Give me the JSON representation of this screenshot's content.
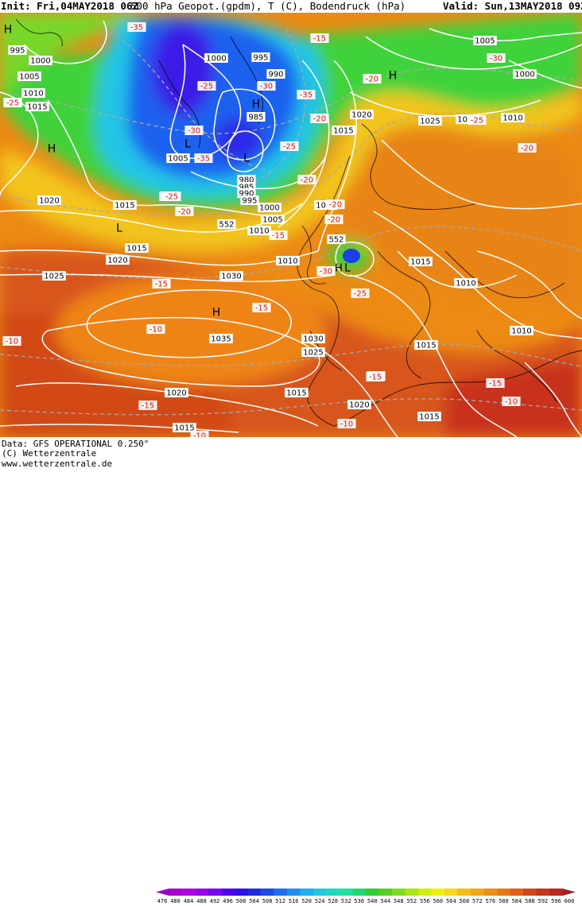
{
  "header": {
    "init": "Init: Fri,04MAY2018 06Z",
    "title": "500 hPa Geopot.(gpdm), T (C), Bodendruck (hPa)",
    "valid": "Valid: Sun,13MAY2018 09Z"
  },
  "footer": {
    "data_line": "Data: GFS OPERATIONAL 0.250°",
    "copyright": "(C) Wetterzentrale",
    "website": "www.wetterzentrale.de"
  },
  "legend": {
    "ticks": [
      "476",
      "480",
      "484",
      "488",
      "492",
      "496",
      "500",
      "504",
      "508",
      "512",
      "516",
      "520",
      "524",
      "528",
      "532",
      "536",
      "540",
      "544",
      "548",
      "552",
      "556",
      "560",
      "564",
      "568",
      "572",
      "576",
      "580",
      "584",
      "588",
      "592",
      "596",
      "600"
    ],
    "colors": [
      "#9b00c8",
      "#a800d0",
      "#b000e0",
      "#9a00e8",
      "#7a00f0",
      "#5000f0",
      "#2f10e8",
      "#1a30e0",
      "#1a4ce8",
      "#1c70f0",
      "#2090f0",
      "#20b0f0",
      "#20c8e0",
      "#20d8c0",
      "#20e0a0",
      "#22d870",
      "#33cc33",
      "#55d022",
      "#7cdc1c",
      "#a8e612",
      "#d0ee10",
      "#eef010",
      "#f6d818",
      "#f4be18",
      "#f0a818",
      "#ec9018",
      "#e67818",
      "#e06018",
      "#d44818",
      "#c83418",
      "#b82820",
      "#a01e24"
    ]
  },
  "map": {
    "colors": {
      "ocean_orange": "#ec8a14",
      "deep_south": "#d8501a",
      "green_band": "#3fd23a",
      "light_green": "#7fdc2a",
      "cyan": "#22c8e8",
      "blue": "#1a60ee",
      "dark_blue": "#3018e6",
      "yellow": "#f4d21a",
      "isobar": "#ffffff",
      "temp_line": "#b0b0b0"
    },
    "pressure_labels": [
      "995",
      "1000",
      "1005",
      "1010",
      "1015",
      "1020",
      "1000",
      "995",
      "990",
      "985",
      "1005",
      "980",
      "985",
      "990",
      "995",
      "1000",
      "1005",
      "1010",
      "1015",
      "1020",
      "1025",
      "1030",
      "1035",
      "1030",
      "1025",
      "1020",
      "1015",
      "1015",
      "1010",
      "1015",
      "1015",
      "1020",
      "1025",
      "1015",
      "1020",
      "1010",
      "1005",
      "1000",
      "1010",
      "1010",
      "1015",
      "1020",
      "1015",
      "1010"
    ],
    "temperature_labels": [
      "-15",
      "-35",
      "-25",
      "-30",
      "-35",
      "-30",
      "-30",
      "-35",
      "-25",
      "-25",
      "-20",
      "-20",
      "-25",
      "-20",
      "-15",
      "-15",
      "-15",
      "-10",
      "-10",
      "-15",
      "-10",
      "-15",
      "-15",
      "-10",
      "-10",
      "-20",
      "-25",
      "-30",
      "-20",
      "-25",
      "-25",
      "-15",
      "-15",
      "-20",
      "-20"
    ],
    "geopotential_labels": [
      "552",
      "552"
    ],
    "centers": [
      "H",
      "L",
      "H",
      "H",
      "H",
      "L",
      "L",
      "H",
      "H",
      "L",
      "H",
      "L"
    ]
  }
}
